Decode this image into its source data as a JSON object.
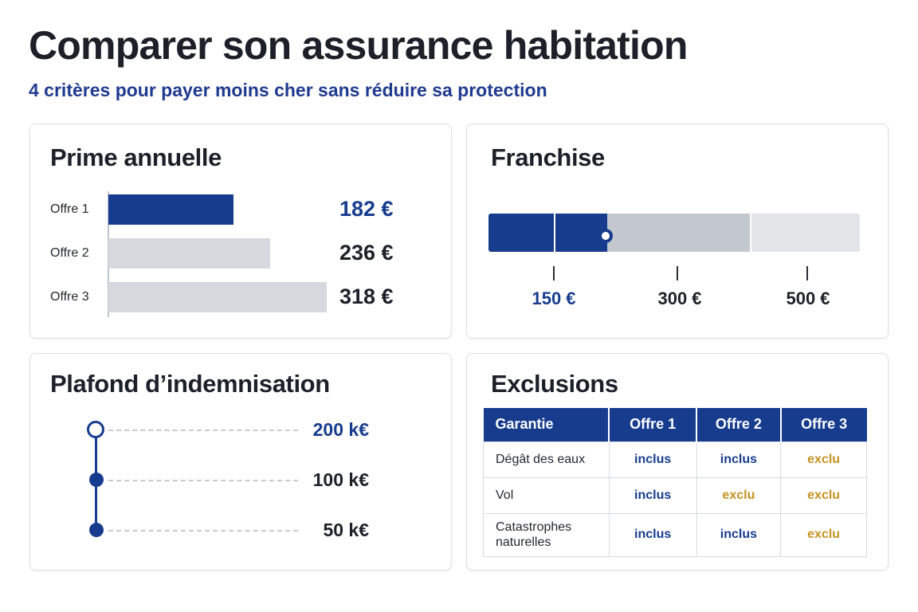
{
  "header": {
    "title": "Comparer son assurance habitation",
    "subtitle": "4 critères pour payer moins cher sans réduire sa protection"
  },
  "colors": {
    "accent": "#173c8e",
    "bar_muted": "#d5d8dd",
    "franchise_mid": "#c3c7ce",
    "franchise_light": "#e2e4e8",
    "exclu": "#c59322"
  },
  "prime": {
    "title": "Prime annuelle",
    "rows": [
      {
        "label": "Offre 1",
        "value": 182,
        "value_text": "182 €",
        "highlight": true
      },
      {
        "label": "Offre 2",
        "value": 236,
        "value_text": "236 €",
        "highlight": false
      },
      {
        "label": "Offre 3",
        "value": 318,
        "value_text": "318 €",
        "highlight": false
      }
    ]
  },
  "franchise": {
    "title": "Franchise",
    "levels": [
      "150 €",
      "300 €",
      "500 €"
    ],
    "selected": "150 €"
  },
  "plafond": {
    "title": "Plafond d’indemnisation",
    "levels": [
      "200 k€",
      "100 k€",
      "50 k€"
    ]
  },
  "exclusions": {
    "title": "Exclusions",
    "headers": [
      "Garantie",
      "Offre 1",
      "Offre 2",
      "Offre 3"
    ],
    "rows": [
      {
        "garantie": "Dégât des eaux",
        "cells": [
          "inclus",
          "inclus",
          "exclu"
        ]
      },
      {
        "garantie": "Vol",
        "cells": [
          "inclus",
          "exclu",
          "exclu"
        ]
      },
      {
        "garantie": "Catastrophes naturelles",
        "cells": [
          "inclus",
          "inclus",
          "exclu"
        ]
      }
    ]
  }
}
